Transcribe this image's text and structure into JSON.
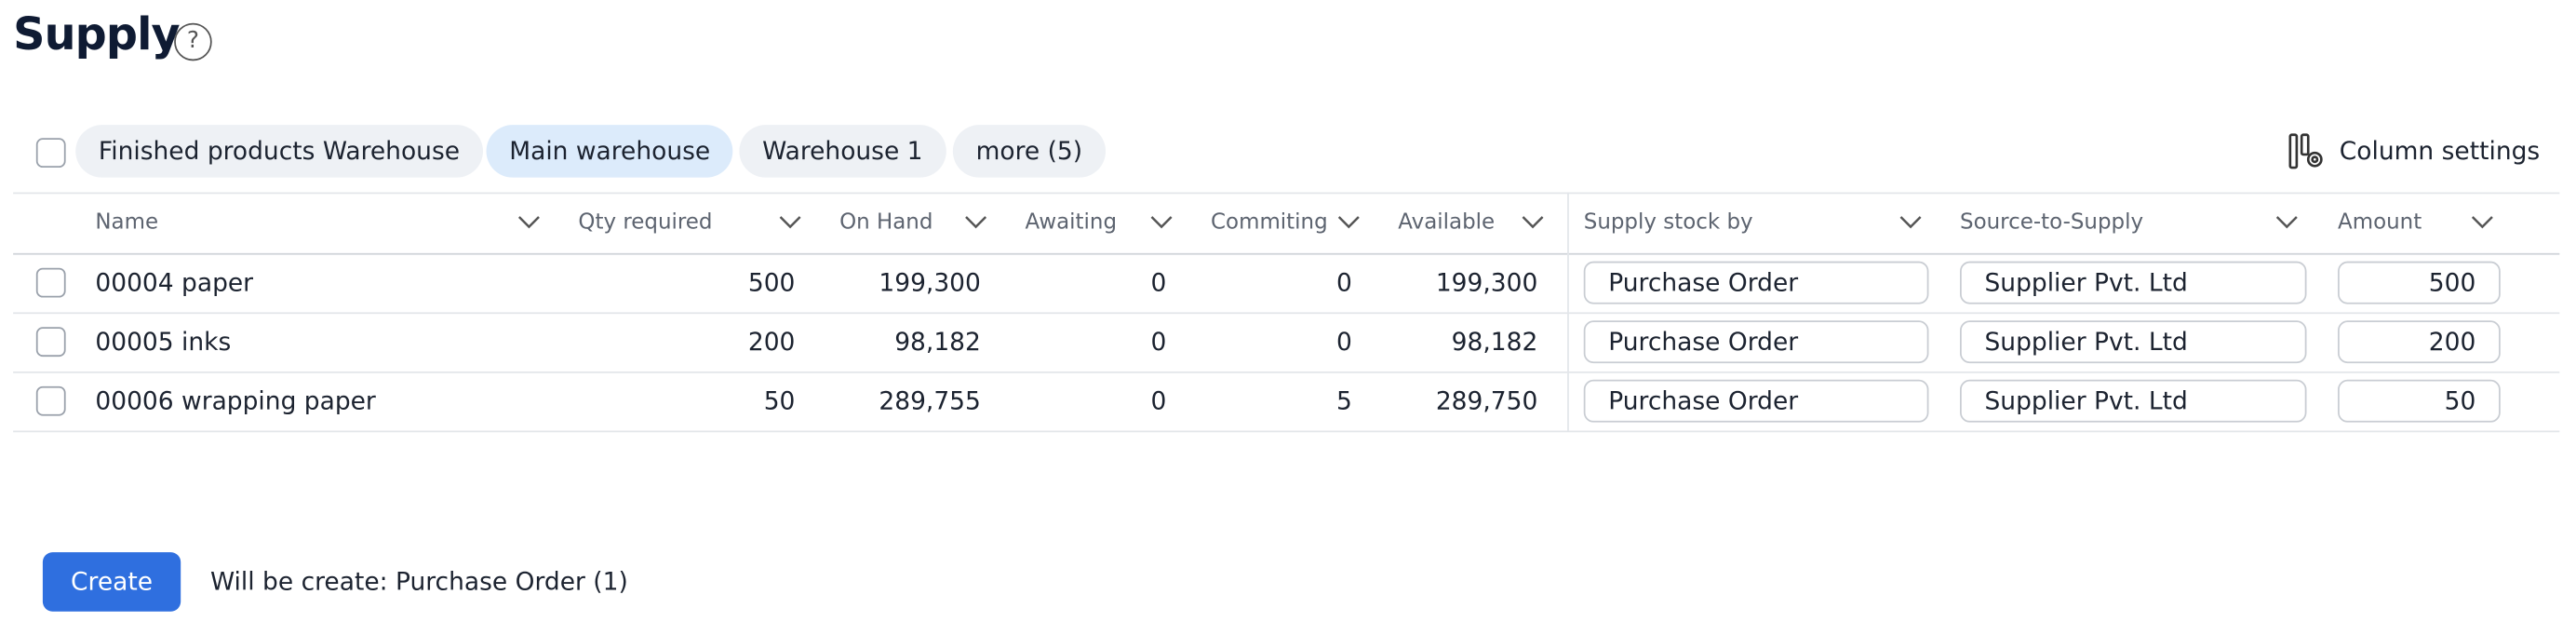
{
  "header": {
    "title": "Supply"
  },
  "filters": {
    "chips": [
      "Finished products Warehouse",
      "Main warehouse",
      "Warehouse 1",
      "more (5)"
    ],
    "selected": 1,
    "column_settings": "Column settings"
  },
  "table": {
    "columns": [
      "Name",
      "Qty required",
      "On Hand",
      "Awaiting",
      "Commiting",
      "Available",
      "Supply stock by",
      "Source-to-Supply",
      "Amount"
    ],
    "rows": [
      [
        "00004 paper",
        "500",
        "199,300",
        "0",
        "0",
        "199,300",
        "Purchase Order",
        "Supplier Pvt. Ltd",
        "500"
      ],
      [
        "00005 inks",
        "200",
        "98,182",
        "0",
        "0",
        "98,182",
        "Purchase Order",
        "Supplier Pvt. Ltd",
        "200"
      ],
      [
        "00006 wrapping paper",
        "50",
        "289,755",
        "0",
        "5",
        "289,750",
        "Purchase Order",
        "Supplier Pvt. Ltd",
        "50"
      ]
    ]
  },
  "footer": {
    "button": "Create",
    "summary": "Will be create: Purchase Order (1)"
  }
}
